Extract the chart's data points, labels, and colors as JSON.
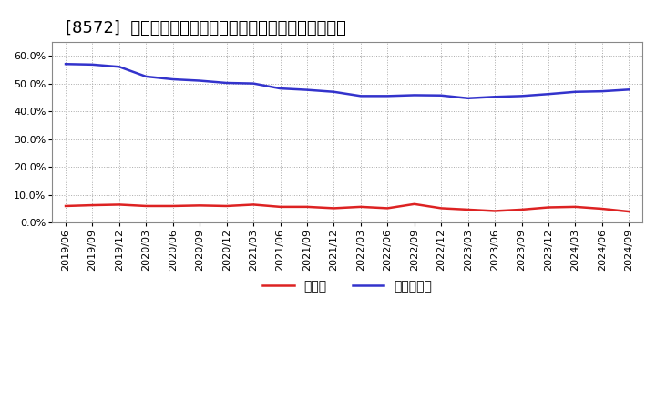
{
  "title": "[8572]  現預金、有利子負債の総資産に対する比率の推移",
  "x_labels": [
    "2019/06",
    "2019/09",
    "2019/12",
    "2020/03",
    "2020/06",
    "2020/09",
    "2020/12",
    "2021/03",
    "2021/06",
    "2021/09",
    "2021/12",
    "2022/03",
    "2022/06",
    "2022/09",
    "2022/12",
    "2023/03",
    "2023/06",
    "2023/09",
    "2023/12",
    "2024/03",
    "2024/06",
    "2024/09"
  ],
  "cash_ratio": [
    0.06,
    0.063,
    0.065,
    0.06,
    0.06,
    0.062,
    0.06,
    0.065,
    0.057,
    0.057,
    0.052,
    0.057,
    0.052,
    0.067,
    0.052,
    0.047,
    0.042,
    0.047,
    0.055,
    0.057,
    0.05,
    0.04
  ],
  "debt_ratio": [
    0.57,
    0.568,
    0.56,
    0.525,
    0.515,
    0.51,
    0.502,
    0.5,
    0.482,
    0.477,
    0.47,
    0.455,
    0.455,
    0.458,
    0.457,
    0.447,
    0.452,
    0.455,
    0.462,
    0.47,
    0.472,
    0.478
  ],
  "cash_color": "#dd2222",
  "debt_color": "#3333cc",
  "background_color": "#ffffff",
  "plot_bg_color": "#ffffff",
  "grid_color": "#aaaaaa",
  "legend_cash": "現預金",
  "legend_debt": "有利子負債",
  "ylim": [
    0.0,
    0.65
  ],
  "yticks": [
    0.0,
    0.1,
    0.2,
    0.3,
    0.4,
    0.5,
    0.6
  ],
  "title_fontsize": 13,
  "tick_fontsize": 8,
  "legend_fontsize": 10,
  "line_width": 1.8
}
